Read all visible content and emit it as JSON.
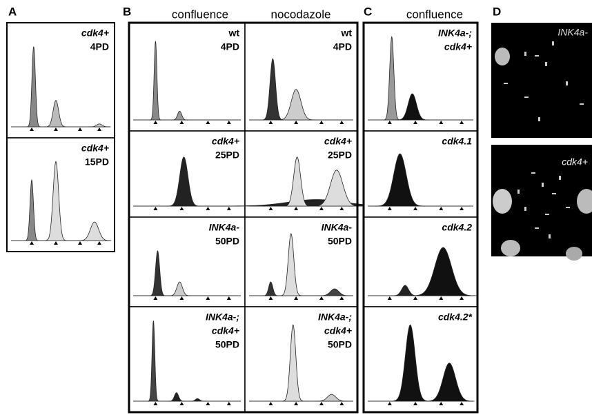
{
  "panel_a": {
    "label": "A",
    "cells": [
      [
        "cdk4+",
        "4PD"
      ],
      [
        "cdk4+",
        "15PD"
      ]
    ]
  },
  "panel_b": {
    "label": "B",
    "columns": [
      "confluence",
      "nocodazole"
    ],
    "cells": [
      [
        [
          "wt",
          "4PD"
        ],
        [
          "cdk4+",
          "25PD"
        ],
        [
          "INK4a-",
          "50PD"
        ],
        [
          "INK4a-;",
          "cdk4+",
          "50PD"
        ]
      ],
      [
        [
          "wt",
          "4PD"
        ],
        [
          "cdk4+",
          "25PD"
        ],
        [
          "INK4a-",
          "50PD"
        ],
        [
          "INK4a-;",
          "cdk4+",
          "50PD"
        ]
      ]
    ]
  },
  "panel_c": {
    "label": "C",
    "column": "confluence",
    "cells": [
      [
        "INK4a-;",
        "cdk4+"
      ],
      [
        "cdk4.1"
      ],
      [
        "cdk4.2"
      ],
      [
        "cdk4.2*"
      ]
    ]
  },
  "panel_d": {
    "label": "D",
    "cells": [
      "INK4a-",
      "cdk4+"
    ]
  }
}
